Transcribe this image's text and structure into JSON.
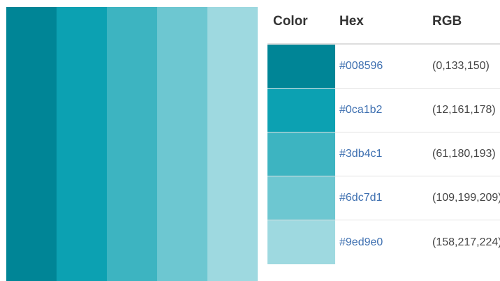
{
  "palette": {
    "stripes": [
      {
        "color": "#008596"
      },
      {
        "color": "#0ca1b2"
      },
      {
        "color": "#3db4c1"
      },
      {
        "color": "#6dc7d1"
      },
      {
        "color": "#9ed9e0"
      }
    ]
  },
  "table": {
    "headers": {
      "color": "Color",
      "hex": "Hex",
      "rgb": "RGB"
    },
    "rows": [
      {
        "swatch": "#008596",
        "hex": "#008596",
        "rgb": "(0,133,150)"
      },
      {
        "swatch": "#0ca1b2",
        "hex": "#0ca1b2",
        "rgb": "(12,161,178)"
      },
      {
        "swatch": "#3db4c1",
        "hex": "#3db4c1",
        "rgb": "(61,180,193)"
      },
      {
        "swatch": "#6dc7d1",
        "hex": "#6dc7d1",
        "rgb": "(109,199,209)"
      },
      {
        "swatch": "#9ed9e0",
        "hex": "#9ed9e0",
        "rgb": "(158,217,224)"
      }
    ]
  }
}
